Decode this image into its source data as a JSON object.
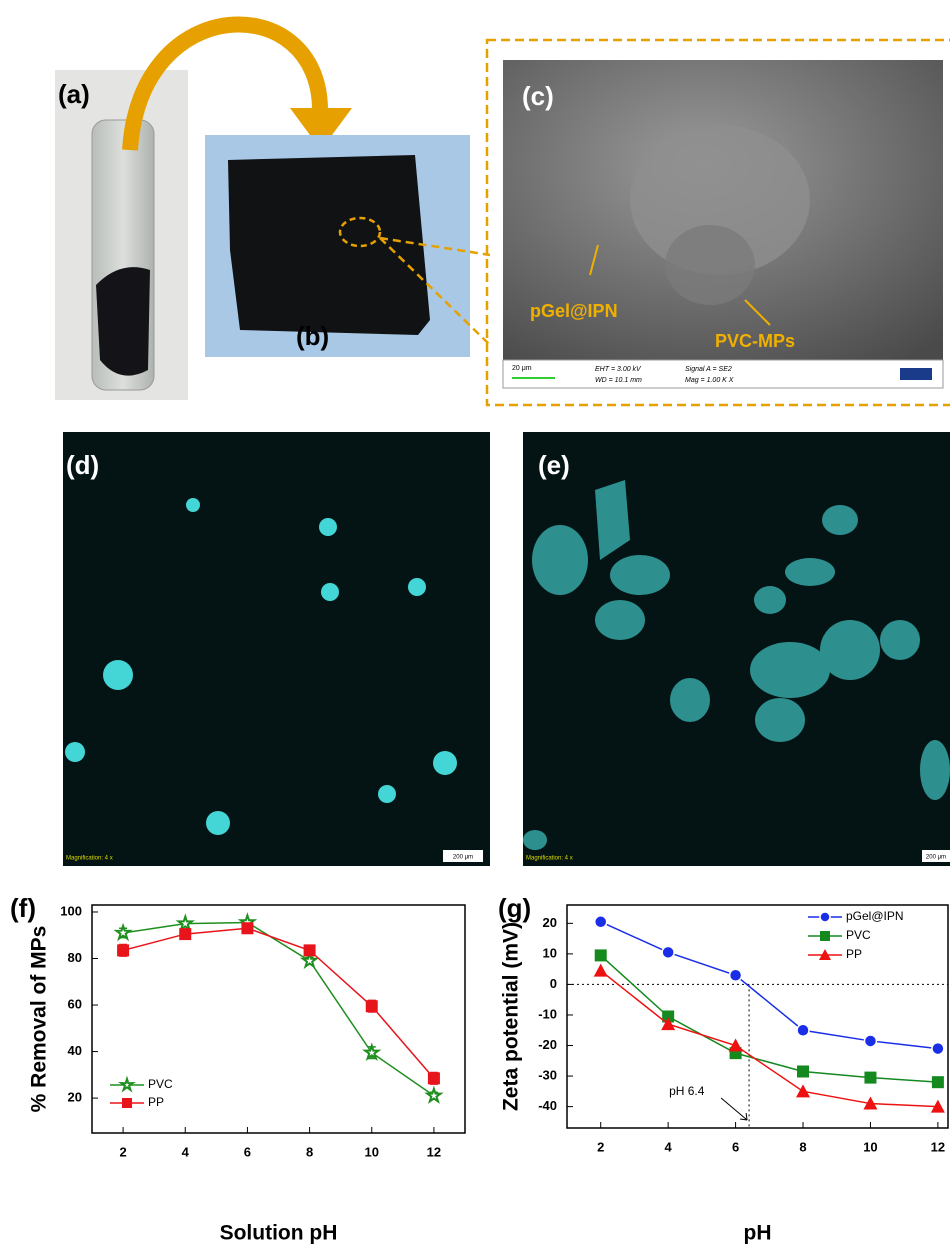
{
  "panels": {
    "labels": [
      "(a)",
      "(b)",
      "(c)",
      "(d)",
      "(e)",
      "(f)",
      "(g)"
    ]
  },
  "sem": {
    "annotations": [
      "pGel@IPN",
      "PVC-MPs"
    ],
    "scale_bar": "20 μm",
    "info": [
      "EHT = 3.00 kV",
      "WD = 10.1 mm",
      "Signal A = SE2",
      "Mag = 1.00 K X"
    ]
  },
  "fluorescence": {
    "magnification": "Magnification: 4 x",
    "scale_bar": "200 μm"
  },
  "chart_data": [
    {
      "type": "line",
      "xlabel": "Solution pH",
      "ylabel": "% Removal of MPs",
      "legend": "lower left",
      "x": [
        2,
        4,
        6,
        8,
        10,
        12
      ],
      "xlim": [
        1,
        13
      ],
      "xticks": [
        2,
        4,
        6,
        8,
        10,
        12
      ],
      "ylim": [
        5,
        103
      ],
      "yticks": [
        20,
        40,
        60,
        80,
        100
      ],
      "series": [
        {
          "name": "PVC",
          "color": "#1e8f1e",
          "marker": "star",
          "values": [
            91,
            95,
            95.5,
            79,
            39.5,
            21
          ],
          "errors": [
            2,
            1,
            1,
            1.5,
            2.5,
            1.5
          ]
        },
        {
          "name": "PP",
          "color": "#e8141c",
          "marker": "square",
          "values": [
            83.5,
            90.5,
            93,
            83.5,
            59.5,
            28.5
          ],
          "errors": [
            2.5,
            1.5,
            1.5,
            1.5,
            2.5,
            2.5
          ]
        }
      ]
    },
    {
      "type": "line",
      "xlabel": "pH",
      "ylabel": "Zeta potential (mV)",
      "legend": "upper right",
      "x": [
        2,
        4,
        6,
        8,
        10,
        12
      ],
      "xlim": [
        1,
        12.3
      ],
      "xticks": [
        2,
        4,
        6,
        8,
        10,
        12
      ],
      "ylim": [
        -47,
        26
      ],
      "yticks": [
        -40,
        -30,
        -20,
        -10,
        0,
        10,
        20
      ],
      "hline": 0,
      "vline": 6.4,
      "annotation": "pH 6.4",
      "series": [
        {
          "name": "pGel@IPN",
          "color": "#1a2ee8",
          "marker": "circle",
          "values": [
            20.5,
            10.5,
            3,
            -15,
            -18.5,
            -21
          ]
        },
        {
          "name": "PVC",
          "color": "#14891e",
          "marker": "square",
          "values": [
            9.5,
            -10.5,
            -22.5,
            -28.5,
            -30.5,
            -32
          ]
        },
        {
          "name": "PP",
          "color": "#ee1111",
          "marker": "triangle",
          "values": [
            4.5,
            -13,
            -20,
            -35,
            -39,
            -40
          ]
        }
      ]
    }
  ]
}
